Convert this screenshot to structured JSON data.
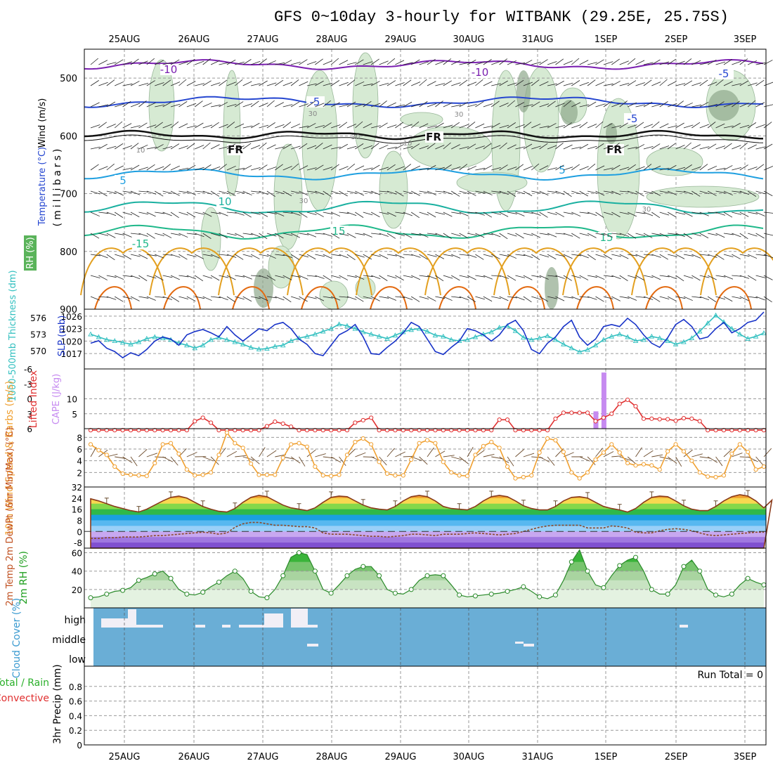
{
  "header": {
    "title": "GFS 0~10day 3-hourly for WITBANK (29.25E, 25.75S)"
  },
  "colors": {
    "grid": "#9a9a9a",
    "rh_fill": "#d6ead3",
    "rh_dark": "#8ea88c",
    "t_minus10": "#7a1fb0",
    "t_minus5": "#2546d0",
    "t_freezing": "#111111",
    "t_5": "#1e9fe0",
    "t_10": "#1ab0a0",
    "t_15": "#1fb88a",
    "t_warm": "#e3a020",
    "t_hot": "#e36a10",
    "slp": "#1833c8",
    "thickness": "#33c0c0",
    "lifted": "#e03030",
    "cape": "#c68af0",
    "wind10": "#f0a030",
    "barb": "#6b4a2a",
    "cloud": "#6aaed6",
    "cloud_gap": "#f1eff6",
    "rh2m_line": "#2a8a2a"
  },
  "chart_data": {
    "type": "line",
    "x_dates": [
      "25AUG",
      "26AUG",
      "27AUG",
      "28AUG",
      "29AUG",
      "30AUG",
      "31AUG",
      "1SEP",
      "2SEP",
      "3SEP"
    ],
    "panels": {
      "upper_air": {
        "ylabel_parts": [
          "Wind (m/s)",
          "Temperature (°C)",
          "RH (%)"
        ],
        "ylabel_unit": "(millibars)",
        "y_ticks": [
          500,
          600,
          700,
          800,
          900
        ],
        "ylim": [
          450,
          900
        ],
        "isotherm_labels": [
          "-10",
          "-10",
          "-5",
          "-5",
          "-5",
          "FR",
          "FR",
          "FR",
          "5",
          "5",
          "10",
          "15",
          "-15",
          "15"
        ],
        "rh_labels": [
          "30",
          "30",
          "10",
          "30",
          "10",
          "30",
          "30"
        ]
      },
      "slp_thickness": {
        "ylabel_left": "1000-500mb Thickness (dm)",
        "ylabel_right": "SLP (mb)",
        "left_ticks": [
          "576",
          "573",
          "570"
        ],
        "right_ticks": [
          "1026",
          "1023",
          "1020",
          "1017"
        ],
        "slp_values": [
          1019.5,
          1020.1,
          1018.3,
          1017.5,
          1016.0,
          1017.2,
          1016.5,
          1018.0,
          1020.0,
          1021.0,
          1020.5,
          1019.0,
          1021.5,
          1022.3,
          1022.8,
          1022.0,
          1021.0,
          1023.5,
          1021.5,
          1020.0,
          1021.5,
          1023.0,
          1022.5,
          1024.0,
          1024.5,
          1023.0,
          1020.5,
          1019.2,
          1017.0,
          1016.5,
          1019.0,
          1021.5,
          1022.5,
          1024.0,
          1021.0,
          1017.0,
          1016.8,
          1018.5,
          1020.0,
          1022.0,
          1024.5,
          1023.5,
          1020.5,
          1017.5,
          1016.8,
          1018.5,
          1020.0,
          1023.0,
          1022.5,
          1021.5,
          1020.0,
          1021.5,
          1024.0,
          1025.0,
          1022.5,
          1018.0,
          1017.0,
          1019.5,
          1021.0,
          1023.5,
          1025.0,
          1021.0,
          1019.0,
          1020.5,
          1023.5,
          1024.0,
          1023.5,
          1025.5,
          1024.0,
          1021.5,
          1019.5,
          1018.5,
          1020.8,
          1024.0,
          1025.2,
          1023.5,
          1020.5,
          1021.0,
          1023.0,
          1024.5,
          1022.0,
          1023.0,
          1024.5,
          1025.0,
          1027.0
        ],
        "thickness_values": [
          573.0,
          572.5,
          572.0,
          571.8,
          571.5,
          571.2,
          571.6,
          572.2,
          572.5,
          572.3,
          572.0,
          571.4,
          571.0,
          570.5,
          571.0,
          572.0,
          572.4,
          572.0,
          571.6,
          571.2,
          570.6,
          570.3,
          570.4,
          570.8,
          571.0,
          571.8,
          572.3,
          572.6,
          573.0,
          573.5,
          574.0,
          574.8,
          574.5,
          574.0,
          573.4,
          573.0,
          572.6,
          572.2,
          572.8,
          573.4,
          573.8,
          574.0,
          573.5,
          572.8,
          572.6,
          572.0,
          571.8,
          572.0,
          572.5,
          573.0,
          573.4,
          574.2,
          574.5,
          573.6,
          572.4,
          572.0,
          572.3,
          572.7,
          572.0,
          571.2,
          570.5,
          569.8,
          570.2,
          571.0,
          572.0,
          572.6,
          573.0,
          572.5,
          571.8,
          572.0,
          572.6,
          572.3,
          571.8,
          571.2,
          571.6,
          572.3,
          573.5,
          575.0,
          576.4,
          575.2,
          574.0,
          573.0,
          572.2,
          572.6,
          573.2
        ]
      },
      "lifted_cape": {
        "ylabel_left": "Lifted Index",
        "ylabel_right": "CAPE (J/kg)",
        "left_ticks": [
          "-6",
          "-3",
          "0",
          "3",
          "6"
        ],
        "right_ticks": [
          "10",
          "5"
        ],
        "lifted_values": [
          6.3,
          6.3,
          6.3,
          6.3,
          6.3,
          6.3,
          6.3,
          6.3,
          6.3,
          6.3,
          6.3,
          6.3,
          6.3,
          4.5,
          3.8,
          4.8,
          6.3,
          6.3,
          6.3,
          6.3,
          6.3,
          6.3,
          5.5,
          4.6,
          5.0,
          5.6,
          6.3,
          6.3,
          6.3,
          6.3,
          6.3,
          6.3,
          6.3,
          4.8,
          4.3,
          3.8,
          6.3,
          6.3,
          6.3,
          6.3,
          6.3,
          6.3,
          6.3,
          6.3,
          6.3,
          6.3,
          6.3,
          6.3,
          6.3,
          6.3,
          6.3,
          4.2,
          4.2,
          6.3,
          6.3,
          6.3,
          6.3,
          6.3,
          4.0,
          2.8,
          2.8,
          2.8,
          2.8,
          4.5,
          3.8,
          3.0,
          1.0,
          0.2,
          1.5,
          4.0,
          4.0,
          4.1,
          4.1,
          4.4,
          3.9,
          4.0,
          4.5,
          6.3,
          6.3,
          6.3,
          6.3,
          6.3,
          6.3,
          6.3,
          6.3
        ],
        "cape_values": {
          "63": 5.8,
          "64": 18.8
        }
      },
      "wind10m": {
        "ylabel": "10m Wind Speed & Barbs (m/s)",
        "y_ticks": [
          "8",
          "6",
          "4",
          "2"
        ],
        "ylim": [
          0,
          9
        ],
        "values": [
          6.8,
          5.8,
          5.0,
          3.0,
          1.8,
          1.6,
          1.5,
          1.4,
          3.6,
          6.8,
          7.0,
          5.2,
          2.5,
          1.5,
          1.6,
          2.0,
          5.0,
          8.8,
          7.0,
          6.2,
          3.5,
          1.6,
          1.6,
          1.6,
          4.5,
          6.8,
          7.0,
          6.4,
          3.0,
          1.5,
          1.4,
          1.6,
          5.0,
          7.2,
          7.8,
          6.8,
          3.8,
          1.8,
          1.5,
          1.5,
          4.2,
          7.0,
          7.5,
          7.0,
          3.8,
          2.0,
          1.5,
          1.4,
          5.0,
          6.5,
          7.2,
          6.2,
          3.0,
          1.0,
          1.2,
          1.5,
          5.4,
          7.8,
          7.5,
          5.5,
          2.0,
          1.0,
          2.0,
          4.2,
          5.4,
          6.8,
          5.4,
          3.6,
          3.2,
          3.4,
          3.2,
          2.5,
          5.6,
          6.8,
          5.6,
          4.0,
          2.0,
          1.3,
          1.2,
          1.5,
          5.2,
          6.8,
          5.5,
          2.5,
          3.0
        ]
      },
      "temp2m": {
        "ylabel": "2m Temp 2m DewPt (6hr Min/Max) (°C)",
        "y_ticks": [
          "32",
          "24",
          "16",
          "8",
          "0",
          "-8"
        ],
        "ylim": [
          -12,
          32
        ],
        "temp_values": [
          23.5,
          22,
          20,
          18,
          16.5,
          15,
          14,
          16,
          19,
          22,
          24.5,
          25.5,
          24,
          21,
          18,
          16,
          14.5,
          14,
          16.5,
          21,
          24.5,
          26,
          25,
          22,
          19,
          17,
          16,
          15,
          17,
          21,
          24.5,
          25.5,
          25,
          22,
          19,
          17,
          16,
          15.5,
          18,
          22,
          25,
          26,
          25,
          22,
          18,
          16.5,
          16,
          15.5,
          18,
          22,
          25,
          26,
          25,
          22,
          18.5,
          16.5,
          15.5,
          15.5,
          18,
          22,
          24.5,
          25,
          24,
          21,
          18,
          16.5,
          15.5,
          14,
          16.5,
          21,
          24.5,
          25.5,
          25,
          22,
          18.5,
          16,
          15,
          15,
          18,
          22,
          25,
          26.5,
          25.5,
          22,
          17,
          22.5
        ],
        "dew_values": [
          -5,
          -5,
          -4.5,
          -4.5,
          -4,
          -4,
          -4,
          -3.5,
          -3,
          -3,
          -2.5,
          -2,
          -1.5,
          -1,
          -0.5,
          -1,
          -2,
          -1,
          3,
          5.5,
          6.5,
          6.5,
          5.5,
          4.5,
          4.5,
          4,
          3.5,
          3.5,
          2.5,
          -1,
          -2,
          -2,
          -2,
          -2.5,
          -3,
          -3.5,
          -3.5,
          -4,
          -3.5,
          -3,
          -2,
          -2,
          -2.5,
          -3,
          -2,
          -2,
          -2,
          -1.5,
          -1,
          -1.5,
          -2,
          -2.5,
          -2,
          -1.5,
          0,
          1.5,
          3,
          4,
          4.5,
          4.5,
          4.5,
          4.5,
          2.5,
          2.5,
          2.5,
          4,
          3.5,
          2.5,
          -0.5,
          -1,
          -1,
          0.5,
          1.5,
          2,
          1.5,
          0.5,
          -1,
          -2.5,
          -3,
          -2.5,
          -2,
          -1.5,
          -1,
          -0.5,
          -0.5
        ]
      },
      "rh2m": {
        "ylabel": "2m RH (%)",
        "y_ticks": [
          "60",
          "40",
          "20"
        ],
        "ylim": [
          0,
          65
        ],
        "values": [
          11,
          12,
          15,
          18,
          19,
          22,
          30,
          33,
          37,
          40,
          32,
          20,
          15,
          14,
          17,
          23,
          28,
          35,
          40,
          32,
          18,
          12,
          11,
          20,
          35,
          55,
          60,
          58,
          40,
          20,
          16,
          25,
          35,
          42,
          45,
          45,
          35,
          20,
          16,
          15,
          20,
          30,
          35,
          36,
          35,
          25,
          14,
          12,
          13,
          14,
          15,
          16,
          18,
          20,
          23,
          18,
          12,
          10,
          14,
          30,
          50,
          63,
          40,
          25,
          22,
          35,
          46,
          52,
          55,
          40,
          20,
          15,
          15,
          25,
          45,
          52,
          40,
          20,
          14,
          12,
          15,
          25,
          32,
          28,
          25
        ]
      },
      "cloud": {
        "ylabel": "Cloud Cover (%)",
        "levels": [
          "high",
          "middle",
          "low"
        ]
      },
      "precip": {
        "ylabel_parts": [
          "Total / Rain",
          "Convective"
        ],
        "ylabel_unit": "3hr Precip (mm)",
        "y_ticks": [
          "0.8",
          "0.6",
          "0.4",
          "0.2",
          "0"
        ],
        "ylim": [
          0,
          1
        ],
        "run_total": "Run Total = 0"
      }
    }
  }
}
